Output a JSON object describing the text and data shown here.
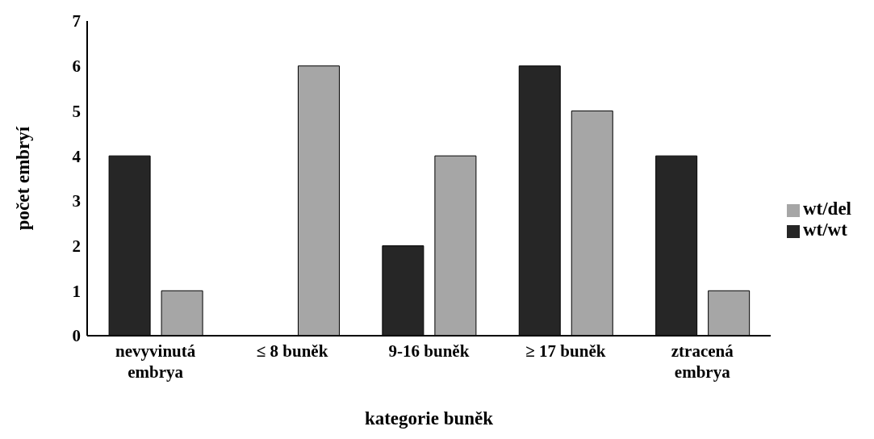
{
  "chart_data": {
    "type": "bar",
    "xlabel": "kategorie buněk",
    "ylabel": "počet embryí",
    "categories": [
      "nevyvinutá\nembrya",
      "≤ 8 buněk",
      "9-16 buněk",
      "≥ 17 buněk",
      "ztracená\nembrya"
    ],
    "series": [
      {
        "name": "wt/wt",
        "color": "#262626",
        "values": [
          4,
          0,
          2,
          6,
          4
        ]
      },
      {
        "name": "wt/del",
        "color": "#a6a6a6",
        "values": [
          1,
          6,
          4,
          5,
          1
        ]
      }
    ],
    "ylim": [
      0,
      7
    ],
    "yticks": [
      0,
      1,
      2,
      3,
      4,
      5,
      6,
      7
    ],
    "grid": false,
    "legend": "right"
  }
}
